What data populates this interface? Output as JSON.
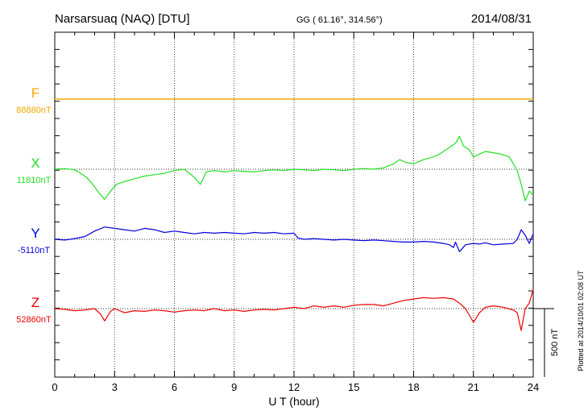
{
  "header": {
    "station": "Narsarsuaq (NAQ)  [DTU]",
    "coords": "GG ( 61.16°, 314.56°)",
    "date": "2014/08/31"
  },
  "footer": {
    "plotted": "Plotted at 2014/10/01 02:08 UT",
    "scale_label": "500 nT"
  },
  "colors": {
    "F": "#f5a800",
    "X": "#22e022",
    "Y": "#0000dd",
    "Z": "#ee0000",
    "grid": "#333333"
  },
  "chart_data": {
    "type": "line",
    "xlabel": "U T (hour)",
    "xlim": [
      0,
      24
    ],
    "x_ticks": [
      "0",
      "3",
      "6",
      "9",
      "12",
      "15",
      "18",
      "21",
      "24"
    ],
    "scale_bar_nT": 500,
    "series": [
      {
        "name": "F",
        "baseline_label": "88880nT",
        "color": "#f5a800",
        "x": [
          0,
          24
        ],
        "y": [
          88880,
          88880
        ]
      },
      {
        "name": "X",
        "baseline_label": "11810nT",
        "color": "#22e022",
        "x": [
          0,
          0.5,
          1,
          1.3,
          1.6,
          1.9,
          2.2,
          2.5,
          2.8,
          3.1,
          3.5,
          4,
          4.5,
          5,
          5.5,
          6,
          6.5,
          7,
          7.3,
          7.6,
          8,
          8.5,
          9,
          9.5,
          10,
          10.5,
          11,
          11.5,
          12,
          12.5,
          13,
          13.5,
          14,
          14.5,
          15,
          15.5,
          16,
          16.5,
          17,
          17.3,
          17.6,
          18,
          18.5,
          19,
          19.3,
          19.6,
          19.9,
          20.1,
          20.3,
          20.5,
          20.8,
          21,
          21.3,
          21.6,
          22,
          22.4,
          22.8,
          23,
          23.2,
          23.4,
          23.6,
          23.8,
          24
        ],
        "y": [
          11810,
          11815,
          11805,
          11780,
          11750,
          11700,
          11640,
          11590,
          11650,
          11700,
          11720,
          11740,
          11760,
          11770,
          11780,
          11800,
          11810,
          11750,
          11700,
          11790,
          11800,
          11790,
          11800,
          11795,
          11790,
          11800,
          11805,
          11800,
          11810,
          11805,
          11800,
          11810,
          11805,
          11800,
          11810,
          11815,
          11810,
          11820,
          11850,
          11880,
          11860,
          11850,
          11880,
          11900,
          11920,
          11950,
          11980,
          12000,
          12050,
          11980,
          11950,
          11900,
          11920,
          11940,
          11930,
          11920,
          11900,
          11850,
          11800,
          11700,
          11580,
          11650,
          11620
        ]
      },
      {
        "name": "Y",
        "baseline_label": "-5110nT",
        "color": "#0000dd",
        "x": [
          0,
          0.5,
          1,
          1.5,
          2,
          2.5,
          3,
          3.5,
          4,
          4.5,
          5,
          5.5,
          6,
          6.5,
          7,
          7.5,
          8,
          8.5,
          9,
          9.5,
          10,
          10.5,
          11,
          11.5,
          12,
          12.2,
          12.5,
          13,
          13.5,
          14,
          14.5,
          15,
          15.5,
          16,
          16.5,
          17,
          17.5,
          18,
          18.5,
          19,
          19.5,
          19.8,
          20,
          20.1,
          20.3,
          20.6,
          21,
          21.3,
          21.6,
          22,
          22.5,
          23,
          23.2,
          23.4,
          23.6,
          23.8,
          24
        ],
        "y": [
          -5110,
          -5115,
          -5105,
          -5090,
          -5050,
          -5020,
          -5030,
          -5040,
          -5050,
          -5030,
          -5040,
          -5060,
          -5050,
          -5060,
          -5070,
          -5060,
          -5065,
          -5060,
          -5065,
          -5070,
          -5060,
          -5065,
          -5060,
          -5070,
          -5065,
          -5100,
          -5110,
          -5105,
          -5110,
          -5115,
          -5110,
          -5115,
          -5120,
          -5115,
          -5120,
          -5125,
          -5130,
          -5130,
          -5125,
          -5130,
          -5140,
          -5150,
          -5170,
          -5130,
          -5200,
          -5150,
          -5140,
          -5145,
          -5135,
          -5150,
          -5145,
          -5140,
          -5110,
          -5040,
          -5080,
          -5140,
          -5070
        ]
      },
      {
        "name": "Z",
        "baseline_label": "52860nT",
        "color": "#ee0000",
        "x": [
          0,
          0.5,
          1,
          1.5,
          2,
          2.3,
          2.5,
          2.8,
          3,
          3.5,
          4,
          4.5,
          5,
          5.5,
          6,
          6.5,
          7,
          7.5,
          8,
          8.5,
          9,
          9.5,
          10,
          10.5,
          11,
          11.5,
          12,
          12.5,
          13,
          13.5,
          14,
          14.5,
          15,
          15.5,
          16,
          16.5,
          17,
          17.5,
          18,
          18.5,
          19,
          19.5,
          20,
          20.3,
          20.6,
          21,
          21.3,
          21.6,
          22,
          22.5,
          23,
          23.2,
          23.4,
          23.6,
          23.8,
          24
        ],
        "y": [
          52860,
          52855,
          52845,
          52850,
          52860,
          52820,
          52770,
          52840,
          52860,
          52830,
          52845,
          52840,
          52850,
          52845,
          52835,
          52845,
          52850,
          52845,
          52860,
          52845,
          52850,
          52840,
          52850,
          52855,
          52850,
          52860,
          52870,
          52860,
          52880,
          52870,
          52880,
          52870,
          52885,
          52890,
          52890,
          52880,
          52900,
          52920,
          52930,
          52940,
          52935,
          52940,
          52930,
          52900,
          52860,
          52760,
          52830,
          52870,
          52880,
          52870,
          52850,
          52830,
          52700,
          52860,
          52900,
          53000
        ]
      }
    ]
  }
}
